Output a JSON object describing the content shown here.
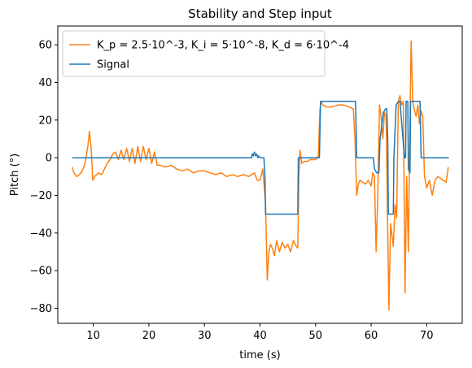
{
  "chart_data": {
    "type": "line",
    "title": "Stability and Step input",
    "xlabel": "time (s)",
    "ylabel": "Pitch (°)",
    "xlim": [
      3.6,
      76.4
    ],
    "ylim": [
      -88,
      70
    ],
    "xticks": [
      10,
      20,
      30,
      40,
      50,
      60,
      70
    ],
    "yticks": [
      -80,
      -60,
      -40,
      -20,
      0,
      20,
      40,
      60
    ],
    "grid": false,
    "legend_position": "top-left",
    "series": [
      {
        "name": "K_p = 2.5·10^-3, K_i = 5·10^-8, K_d = 6·10^-4",
        "color": "#ff7f0e",
        "x": [
          6.2,
          6.5,
          7.0,
          7.5,
          8.0,
          8.5,
          9.0,
          9.3,
          9.6,
          9.9,
          10.2,
          10.6,
          11.0,
          11.5,
          12.0,
          12.5,
          13.0,
          13.5,
          14.0,
          14.5,
          15.0,
          15.5,
          16.0,
          16.5,
          17.0,
          17.5,
          18.0,
          18.5,
          19.0,
          19.5,
          20.0,
          20.5,
          21.0,
          21.5,
          22.0,
          23.0,
          24.0,
          25.0,
          26.0,
          27.0,
          28.0,
          29.0,
          30.0,
          31.0,
          32.0,
          33.0,
          34.0,
          35.0,
          36.0,
          37.0,
          38.0,
          39.0,
          39.5,
          40.0,
          40.5,
          41.0,
          41.3,
          41.6,
          41.9,
          42.2,
          42.6,
          43.0,
          43.5,
          44.0,
          44.5,
          45.0,
          45.5,
          46.0,
          46.5,
          46.8,
          47.0,
          47.2,
          47.5,
          48.0,
          48.5,
          49.0,
          49.5,
          50.0,
          50.5,
          50.8,
          51.0,
          51.3,
          52.0,
          53.0,
          54.0,
          55.0,
          56.0,
          56.8,
          57.1,
          57.4,
          57.7,
          58.0,
          58.5,
          59.0,
          59.5,
          60.0,
          60.3,
          60.6,
          60.9,
          61.2,
          61.5,
          61.8,
          62.1,
          62.4,
          62.7,
          63.0,
          63.2,
          63.5,
          64.0,
          64.3,
          64.6,
          64.9,
          65.2,
          65.5,
          65.8,
          66.1,
          66.4,
          66.7,
          67.0,
          67.2,
          67.5,
          67.8,
          68.1,
          68.4,
          68.7,
          69.0,
          69.3,
          69.6,
          70.0,
          70.5,
          71.0,
          71.5,
          72.0,
          72.5,
          73.0,
          73.5,
          73.9
        ],
        "y": [
          -5,
          -8,
          -10,
          -9,
          -7,
          -3,
          6,
          14,
          5,
          -12,
          -10,
          -9,
          -8,
          -9,
          -6,
          -3,
          -1,
          2,
          3,
          -1,
          4,
          -1,
          5,
          -2,
          5,
          -3,
          6,
          -2,
          6,
          -1,
          5,
          -3,
          3,
          -4,
          -4,
          -5,
          -4,
          -6,
          -7,
          -6,
          -8,
          -7,
          -7,
          -8,
          -9,
          -8,
          -10,
          -9,
          -10,
          -9,
          -10,
          -8,
          -12,
          -12,
          -6,
          -24,
          -65,
          -50,
          -46,
          -48,
          -52,
          -44,
          -50,
          -45,
          -48,
          -46,
          -50,
          -44,
          -47,
          -48,
          -10,
          4,
          -3,
          -2,
          -2,
          -1,
          -1,
          -1,
          1,
          26,
          30,
          28,
          27,
          27,
          28,
          28,
          27,
          26,
          10,
          -20,
          -14,
          -12,
          -13,
          -14,
          -12,
          -15,
          -8,
          -10,
          -50,
          -20,
          28,
          22,
          10,
          24,
          22,
          -40,
          -81,
          -35,
          -47,
          -25,
          -32,
          30,
          33,
          28,
          30,
          -72,
          -10,
          -50,
          20,
          62,
          30,
          25,
          22,
          28,
          18,
          25,
          22,
          -10,
          -16,
          -12,
          -20,
          -12,
          -10,
          -11,
          -12,
          -13,
          -5
        ]
      },
      {
        "name": "Signal",
        "color": "#1f77b4",
        "x": [
          6.2,
          38.5,
          38.6,
          38.8,
          39.0,
          39.2,
          39.4,
          39.6,
          39.8,
          40.0,
          40.7,
          40.9,
          41.0,
          46.8,
          46.9,
          50.7,
          50.9,
          57.2,
          57.4,
          60.4,
          60.6,
          61.0,
          61.4,
          61.6,
          62.2,
          62.6,
          62.8,
          63.0,
          63.1,
          64.0,
          64.1,
          64.5,
          64.9,
          65.2,
          66.0,
          66.2,
          66.3,
          66.6,
          66.7,
          67.0,
          67.1,
          68.8,
          69.0,
          74.0
        ],
        "y": [
          0,
          0,
          2,
          1,
          3,
          1,
          2,
          0,
          1,
          0,
          0,
          -10,
          -30,
          -30,
          0,
          0,
          30,
          30,
          0,
          0,
          -6,
          -8,
          -8,
          10,
          24,
          26,
          26,
          10,
          -30,
          -30,
          0,
          28,
          30,
          30,
          0,
          0,
          30,
          30,
          -6,
          -8,
          30,
          30,
          0,
          0
        ]
      }
    ]
  }
}
